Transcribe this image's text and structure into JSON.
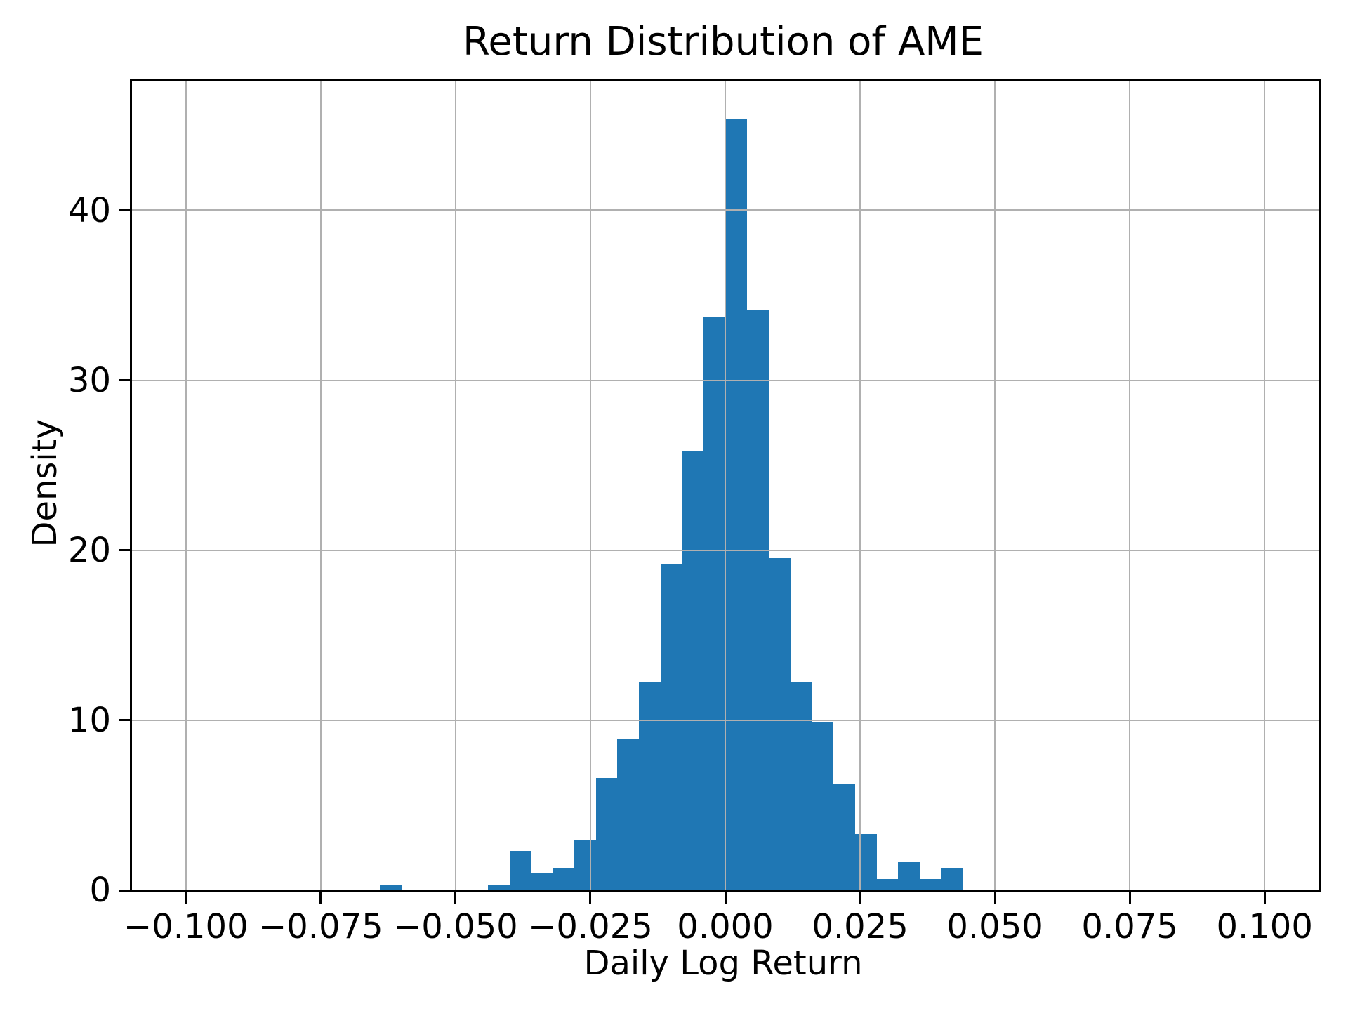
{
  "chart_data": {
    "type": "bar",
    "subtype": "histogram",
    "title": "Return Distribution of AME",
    "xlabel": "Daily Log Return",
    "ylabel": "Density",
    "bar_color": "#1f77b4",
    "grid_color": "#b0b0b0",
    "axis_color": "#000000",
    "background_color": "#ffffff",
    "grid": true,
    "legend_position": "none",
    "xlim": [
      -0.11,
      0.11
    ],
    "ylim": [
      0,
      47.63
    ],
    "x_ticks": [
      {
        "value": -0.1,
        "label": "−0.100"
      },
      {
        "value": -0.075,
        "label": "−0.075"
      },
      {
        "value": -0.05,
        "label": "−0.050"
      },
      {
        "value": -0.025,
        "label": "−0.025"
      },
      {
        "value": 0.0,
        "label": "0.000"
      },
      {
        "value": 0.025,
        "label": "0.025"
      },
      {
        "value": 0.05,
        "label": "0.050"
      },
      {
        "value": 0.075,
        "label": "0.075"
      },
      {
        "value": 0.1,
        "label": "0.100"
      }
    ],
    "y_ticks": [
      {
        "value": 0,
        "label": "0"
      },
      {
        "value": 10,
        "label": "10"
      },
      {
        "value": 20,
        "label": "20"
      },
      {
        "value": 30,
        "label": "30"
      },
      {
        "value": 40,
        "label": "40"
      }
    ],
    "bin_width": 0.004,
    "bin_edges": [
      -0.064,
      -0.06,
      -0.056,
      -0.052,
      -0.048,
      -0.044,
      -0.04,
      -0.036,
      -0.032,
      -0.028,
      -0.024,
      -0.02,
      -0.016,
      -0.012,
      -0.008,
      -0.004,
      0.0,
      0.004,
      0.008,
      0.012,
      0.016,
      0.02,
      0.024,
      0.028,
      0.032,
      0.036,
      0.04,
      0.044
    ],
    "densities": [
      0.33,
      0,
      0,
      0,
      0,
      0.33,
      2.32,
      0.99,
      1.32,
      2.98,
      6.62,
      8.94,
      12.25,
      19.21,
      25.83,
      33.77,
      45.36,
      34.11,
      19.54,
      12.25,
      9.93,
      6.29,
      3.31,
      0.66,
      1.66,
      0.66,
      1.32
    ]
  }
}
